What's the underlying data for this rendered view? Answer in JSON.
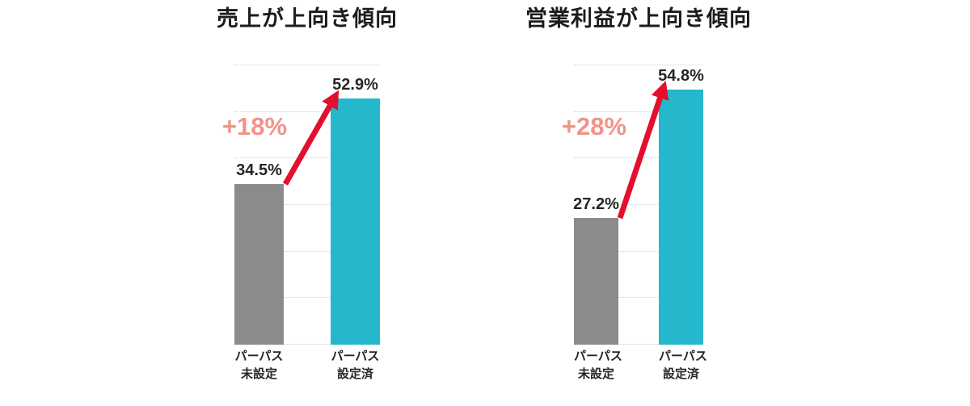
{
  "page": {
    "background": "#ffffff"
  },
  "colors": {
    "bar_not_set": "#8b8b8b",
    "bar_set": "#25b7cb",
    "delta_text": "#f0948a",
    "arrow": "#e2102c",
    "grid": "#cfcfcf",
    "title_text": "#1c1c1c",
    "label_text": "#262626"
  },
  "chart_data": [
    {
      "type": "bar",
      "title": "売上が上向き傾向",
      "categories": [
        "パーパス未設定",
        "パーパス設定済"
      ],
      "categories_lines": [
        [
          "パーパス",
          "未設定"
        ],
        [
          "パーパス",
          "設定済"
        ]
      ],
      "values": [
        34.5,
        52.9
      ],
      "value_labels": [
        "34.5%",
        "52.9%"
      ],
      "delta_annotation": "+18%",
      "xlabel": "",
      "ylabel": "",
      "ylim": [
        0,
        60
      ],
      "grid_step": 10,
      "grid": true,
      "legend": false,
      "bar_colors": [
        "#8b8b8b",
        "#25b7cb"
      ]
    },
    {
      "type": "bar",
      "title": "営業利益が上向き傾向",
      "categories": [
        "パーパス未設定",
        "パーパス設定済"
      ],
      "categories_lines": [
        [
          "パーパス",
          "未設定"
        ],
        [
          "パーパス",
          "設定済"
        ]
      ],
      "values": [
        27.2,
        54.8
      ],
      "value_labels": [
        "27.2%",
        "54.8%"
      ],
      "delta_annotation": "+28%",
      "xlabel": "",
      "ylabel": "",
      "ylim": [
        0,
        60
      ],
      "grid_step": 10,
      "grid": true,
      "legend": false,
      "bar_colors": [
        "#8b8b8b",
        "#25b7cb"
      ]
    }
  ]
}
